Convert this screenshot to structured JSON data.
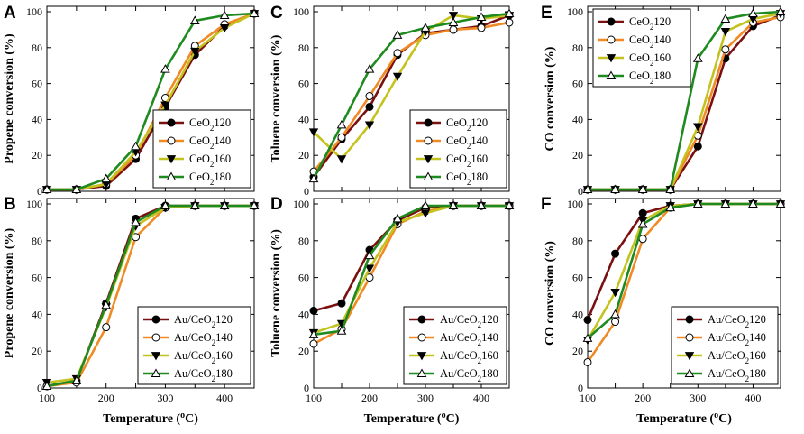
{
  "colors": {
    "s120": "#7b1010",
    "s140": "#f08a24",
    "s160": "#c4c21e",
    "s180": "#1f8a1f"
  },
  "chart_data": [
    {
      "id": "A",
      "panel_label": "A",
      "type": "line",
      "ylabel": "Propene conversion (%)",
      "xlabel": "",
      "xlim": [
        100,
        450
      ],
      "ylim": [
        0,
        100
      ],
      "xticks": [],
      "yticks": [
        0,
        20,
        40,
        60,
        80,
        100
      ],
      "legend_position": "lower-right",
      "series": [
        {
          "name": "CeO2120",
          "label_main": "CeO",
          "label_sub": "2",
          "label_tail": "120",
          "color_key": "s120",
          "marker": "circle-filled",
          "x": [
            100,
            150,
            200,
            250,
            300,
            350,
            400,
            450
          ],
          "y": [
            1,
            1,
            3,
            18,
            47,
            76,
            92,
            99
          ]
        },
        {
          "name": "CeO2140",
          "label_main": "CeO",
          "label_sub": "2",
          "label_tail": "140",
          "color_key": "s140",
          "marker": "circle-open",
          "x": [
            100,
            150,
            200,
            250,
            300,
            350,
            400,
            450
          ],
          "y": [
            1,
            1,
            4,
            20,
            52,
            81,
            93,
            99
          ]
        },
        {
          "name": "CeO2160",
          "label_main": "CeO",
          "label_sub": "2",
          "label_tail": "160",
          "color_key": "s160",
          "marker": "triangle-down",
          "x": [
            100,
            150,
            200,
            250,
            300,
            350,
            400,
            450
          ],
          "y": [
            1,
            1,
            4,
            22,
            48,
            78,
            91,
            99
          ]
        },
        {
          "name": "CeO2180",
          "label_main": "CeO",
          "label_sub": "2",
          "label_tail": "180",
          "color_key": "s180",
          "marker": "triangle-up-open",
          "x": [
            100,
            150,
            200,
            250,
            300,
            350,
            400,
            450
          ],
          "y": [
            1,
            1,
            7,
            25,
            68,
            95,
            98,
            99
          ]
        }
      ]
    },
    {
      "id": "B",
      "panel_label": "B",
      "type": "line",
      "ylabel": "Propene conversion (%)",
      "xlabel": "Temperature (",
      "xlabel_sup": "o",
      "xlabel_tail": "C)",
      "xlim": [
        100,
        450
      ],
      "ylim": [
        0,
        100
      ],
      "xticks": [
        100,
        200,
        300,
        400
      ],
      "yticks": [
        0,
        20,
        40,
        60,
        80,
        100
      ],
      "legend_position": "lower-right",
      "series": [
        {
          "name": "Au/CeO2120",
          "label_main": "Au/CeO",
          "label_sub": "2",
          "label_tail": "120",
          "color_key": "s120",
          "marker": "circle-filled",
          "x": [
            100,
            150,
            200,
            250,
            300,
            350,
            400,
            450
          ],
          "y": [
            1,
            4,
            46,
            92,
            99,
            99,
            99,
            99
          ]
        },
        {
          "name": "Au/CeO2140",
          "label_main": "Au/CeO",
          "label_sub": "2",
          "label_tail": "140",
          "color_key": "s140",
          "marker": "circle-open",
          "x": [
            100,
            150,
            200,
            250,
            300,
            350,
            400,
            450
          ],
          "y": [
            1,
            3,
            33,
            82,
            98,
            99,
            99,
            99
          ]
        },
        {
          "name": "Au/CeO2160",
          "label_main": "Au/CeO",
          "label_sub": "2",
          "label_tail": "160",
          "color_key": "s160",
          "marker": "triangle-down",
          "x": [
            100,
            150,
            200,
            250,
            300,
            350,
            400,
            450
          ],
          "y": [
            3,
            5,
            44,
            88,
            98,
            99,
            99,
            99
          ]
        },
        {
          "name": "Au/CeO2180",
          "label_main": "Au/CeO",
          "label_sub": "2",
          "label_tail": "180",
          "color_key": "s180",
          "marker": "triangle-up-open",
          "x": [
            100,
            150,
            200,
            250,
            300,
            350,
            400,
            450
          ],
          "y": [
            1,
            4,
            45,
            90,
            99,
            99,
            99,
            99
          ]
        }
      ]
    },
    {
      "id": "C",
      "panel_label": "C",
      "type": "line",
      "ylabel": "Toluene conversion (%)",
      "xlabel": "",
      "xlim": [
        100,
        450
      ],
      "ylim": [
        0,
        100
      ],
      "xticks": [],
      "yticks": [
        0,
        20,
        40,
        60,
        80,
        100
      ],
      "legend_position": "lower-right",
      "series": [
        {
          "name": "CeO2120",
          "label_main": "CeO",
          "label_sub": "2",
          "label_tail": "120",
          "color_key": "s120",
          "marker": "circle-filled",
          "x": [
            100,
            150,
            200,
            250,
            300,
            350,
            400,
            450
          ],
          "y": [
            8,
            29,
            47,
            76,
            88,
            90,
            92,
            98
          ]
        },
        {
          "name": "CeO2140",
          "label_main": "CeO",
          "label_sub": "2",
          "label_tail": "140",
          "color_key": "s140",
          "marker": "circle-open",
          "x": [
            100,
            150,
            200,
            250,
            300,
            350,
            400,
            450
          ],
          "y": [
            11,
            30,
            53,
            77,
            87,
            90,
            91,
            94
          ]
        },
        {
          "name": "CeO2160",
          "label_main": "CeO",
          "label_sub": "2",
          "label_tail": "160",
          "color_key": "s160",
          "marker": "triangle-down",
          "x": [
            100,
            150,
            200,
            250,
            300,
            350,
            400,
            450
          ],
          "y": [
            33,
            18,
            37,
            64,
            89,
            98,
            96,
            98
          ]
        },
        {
          "name": "CeO2180",
          "label_main": "CeO",
          "label_sub": "2",
          "label_tail": "180",
          "color_key": "s180",
          "marker": "triangle-up-open",
          "x": [
            100,
            150,
            200,
            250,
            300,
            350,
            400,
            450
          ],
          "y": [
            7,
            37,
            68,
            87,
            91,
            94,
            97,
            99
          ]
        }
      ]
    },
    {
      "id": "D",
      "panel_label": "D",
      "type": "line",
      "ylabel": "Toluene conversion (%)",
      "xlabel": "Temperature (",
      "xlabel_sup": "o",
      "xlabel_tail": "C)",
      "xlim": [
        100,
        450
      ],
      "ylim": [
        0,
        100
      ],
      "xticks": [
        100,
        200,
        300,
        400
      ],
      "yticks": [
        0,
        20,
        40,
        60,
        80,
        100
      ],
      "legend_position": "lower-right",
      "series": [
        {
          "name": "Au/CeO2120",
          "label_main": "Au/CeO",
          "label_sub": "2",
          "label_tail": "120",
          "color_key": "s120",
          "marker": "circle-filled",
          "x": [
            100,
            150,
            200,
            250,
            300,
            350,
            400,
            450
          ],
          "y": [
            42,
            46,
            75,
            91,
            98,
            99,
            99,
            99
          ]
        },
        {
          "name": "Au/CeO2140",
          "label_main": "Au/CeO",
          "label_sub": "2",
          "label_tail": "140",
          "color_key": "s140",
          "marker": "circle-open",
          "x": [
            100,
            150,
            200,
            250,
            300,
            350,
            400,
            450
          ],
          "y": [
            24,
            32,
            60,
            89,
            96,
            99,
            99,
            99
          ]
        },
        {
          "name": "Au/CeO2160",
          "label_main": "Au/CeO",
          "label_sub": "2",
          "label_tail": "160",
          "color_key": "s160",
          "marker": "triangle-down",
          "x": [
            100,
            150,
            200,
            250,
            300,
            350,
            400,
            450
          ],
          "y": [
            30,
            35,
            65,
            90,
            95,
            99,
            99,
            99
          ]
        },
        {
          "name": "Au/CeO2180",
          "label_main": "Au/CeO",
          "label_sub": "2",
          "label_tail": "180",
          "color_key": "s180",
          "marker": "triangle-up-open",
          "x": [
            100,
            150,
            200,
            250,
            300,
            350,
            400,
            450
          ],
          "y": [
            29,
            31,
            72,
            92,
            99,
            99,
            99,
            99
          ]
        }
      ]
    },
    {
      "id": "E",
      "panel_label": "E",
      "type": "line",
      "ylabel": "CO conversion (%)",
      "xlabel": "",
      "xlim": [
        100,
        450
      ],
      "ylim": [
        0,
        100
      ],
      "xticks": [],
      "yticks": [
        0,
        20,
        40,
        60,
        80,
        100
      ],
      "legend_position": "top-left",
      "series": [
        {
          "name": "CeO2120",
          "label_main": "CeO",
          "label_sub": "2",
          "label_tail": "120",
          "color_key": "s120",
          "marker": "circle-filled",
          "x": [
            100,
            150,
            200,
            250,
            300,
            350,
            400,
            450
          ],
          "y": [
            1,
            1,
            1,
            1,
            25,
            74,
            92,
            98
          ]
        },
        {
          "name": "CeO2140",
          "label_main": "CeO",
          "label_sub": "2",
          "label_tail": "140",
          "color_key": "s140",
          "marker": "circle-open",
          "x": [
            100,
            150,
            200,
            250,
            300,
            350,
            400,
            450
          ],
          "y": [
            1,
            1,
            1,
            1,
            31,
            79,
            94,
            97
          ]
        },
        {
          "name": "CeO2160",
          "label_main": "CeO",
          "label_sub": "2",
          "label_tail": "160",
          "color_key": "s160",
          "marker": "triangle-down",
          "x": [
            100,
            150,
            200,
            250,
            300,
            350,
            400,
            450
          ],
          "y": [
            1,
            1,
            1,
            1,
            36,
            89,
            96,
            99
          ]
        },
        {
          "name": "CeO2180",
          "label_main": "CeO",
          "label_sub": "2",
          "label_tail": "180",
          "color_key": "s180",
          "marker": "triangle-up-open",
          "x": [
            100,
            150,
            200,
            250,
            300,
            350,
            400,
            450
          ],
          "y": [
            1,
            1,
            1,
            1,
            74,
            96,
            99,
            100
          ]
        }
      ]
    },
    {
      "id": "F",
      "panel_label": "F",
      "type": "line",
      "ylabel": "CO conversion (%)",
      "xlabel": "Temperature (",
      "xlabel_sup": "o",
      "xlabel_tail": "C)",
      "xlim": [
        100,
        450
      ],
      "ylim": [
        0,
        100
      ],
      "xticks": [
        100,
        200,
        300,
        400
      ],
      "yticks": [
        0,
        20,
        40,
        60,
        80,
        100
      ],
      "legend_position": "lower-right",
      "series": [
        {
          "name": "Au/CeO2120",
          "label_main": "Au/CeO",
          "label_sub": "2",
          "label_tail": "120",
          "color_key": "s120",
          "marker": "circle-filled",
          "x": [
            100,
            150,
            200,
            250,
            300,
            350,
            400,
            450
          ],
          "y": [
            37,
            73,
            95,
            99,
            100,
            100,
            100,
            100
          ]
        },
        {
          "name": "Au/CeO2140",
          "label_main": "Au/CeO",
          "label_sub": "2",
          "label_tail": "140",
          "color_key": "s140",
          "marker": "circle-open",
          "x": [
            100,
            150,
            200,
            250,
            300,
            350,
            400,
            450
          ],
          "y": [
            14,
            36,
            81,
            98,
            100,
            100,
            100,
            100
          ]
        },
        {
          "name": "Au/CeO2160",
          "label_main": "Au/CeO",
          "label_sub": "2",
          "label_tail": "160",
          "color_key": "s160",
          "marker": "triangle-down",
          "x": [
            100,
            150,
            200,
            250,
            300,
            350,
            400,
            450
          ],
          "y": [
            26,
            52,
            91,
            99,
            100,
            100,
            100,
            100
          ]
        },
        {
          "name": "Au/CeO2180",
          "label_main": "Au/CeO",
          "label_sub": "2",
          "label_tail": "180",
          "color_key": "s180",
          "marker": "triangle-up-open",
          "x": [
            100,
            150,
            200,
            250,
            300,
            350,
            400,
            450
          ],
          "y": [
            27,
            40,
            89,
            98,
            100,
            100,
            100,
            100
          ]
        }
      ]
    }
  ]
}
